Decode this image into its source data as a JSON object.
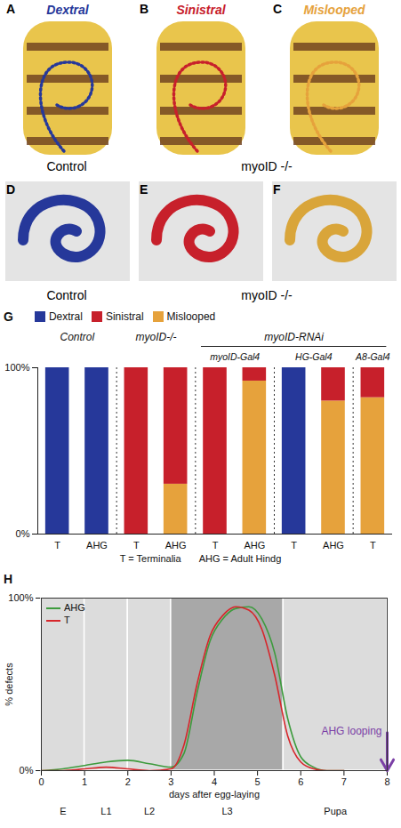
{
  "image_rows": [
    {
      "panels": [
        {
          "letter": "A",
          "label": "Dextral",
          "color": "#26389a"
        },
        {
          "letter": "B",
          "label": "Sinistral",
          "color": "#c7202b"
        },
        {
          "letter": "C",
          "label": "Mislooped",
          "color": "#e6a23c"
        }
      ],
      "captions": [
        {
          "text": "Control",
          "span": 1
        },
        {
          "text": "myoID -/-",
          "span": 2
        }
      ]
    },
    {
      "panels": [
        {
          "letter": "D",
          "color": "#26389a"
        },
        {
          "letter": "E",
          "color": "#c7202b"
        },
        {
          "letter": "F",
          "color": "#d9a53a"
        }
      ],
      "captions": [
        {
          "text": "Control",
          "span": 1
        },
        {
          "text": "myoID -/-",
          "span": 2
        }
      ]
    }
  ],
  "chart_data": [
    {
      "panel": "G",
      "type": "bar",
      "stacked": true,
      "legend": "top",
      "categories": [
        "T",
        "AHG",
        "T",
        "AHG",
        "T",
        "AHG",
        "T",
        "AHG",
        "T"
      ],
      "series": [
        {
          "name": "Dextral",
          "color": "#26389a",
          "values": [
            100,
            100,
            0,
            0,
            0,
            0,
            100,
            0,
            0
          ]
        },
        {
          "name": "Sinistral",
          "color": "#c7202b",
          "values": [
            0,
            0,
            100,
            70,
            100,
            8,
            0,
            20,
            18
          ]
        },
        {
          "name": "Mislooped",
          "color": "#e6a23c",
          "values": [
            0,
            0,
            0,
            30,
            0,
            92,
            0,
            80,
            82
          ]
        }
      ],
      "ylim": [
        0,
        100
      ],
      "yticks": [
        {
          "value": 0,
          "label": "0%"
        },
        {
          "value": 100,
          "label": "100%"
        }
      ],
      "groups": [
        {
          "label": "Control",
          "size": 2
        },
        {
          "label": "myoID-/-",
          "size": 2
        },
        {
          "label": "myoID-RNAi",
          "size": 5,
          "subgroups": [
            {
              "label": "myoID-Gal4",
              "size": 2
            },
            {
              "label": "HG-Gal4",
              "size": 2
            },
            {
              "label": "A8-Gal4",
              "size": 1
            }
          ]
        }
      ],
      "notes": [
        "T = Terminalia",
        "AHG = Adult Hindg"
      ]
    },
    {
      "panel": "H",
      "type": "line",
      "legend": "top-left",
      "xlabel": "days after egg-laying",
      "ylabel": "% defects",
      "xlim": [
        0,
        8
      ],
      "xticks": [
        0,
        1,
        2,
        3,
        4,
        5,
        6,
        7,
        8
      ],
      "ylim": [
        0,
        100
      ],
      "yticks": [
        {
          "value": 0,
          "label": "0%"
        },
        {
          "value": 100,
          "label": "100%"
        }
      ],
      "series": [
        {
          "name": "AHG",
          "color": "#3d9b3d",
          "x": [
            0,
            0.5,
            1,
            1.5,
            2,
            2.5,
            3,
            3.3,
            3.6,
            3.9,
            4.2,
            4.5,
            4.8,
            5.1,
            5.4,
            5.7,
            6,
            6.3,
            6.6,
            7
          ],
          "values": [
            0,
            1,
            3,
            5,
            6,
            4,
            2,
            10,
            45,
            75,
            88,
            94,
            95,
            88,
            68,
            30,
            8,
            2,
            0,
            0
          ]
        },
        {
          "name": "T",
          "color": "#d7262b",
          "x": [
            0,
            0.5,
            1,
            1.5,
            2,
            2.5,
            3,
            3.3,
            3.6,
            3.9,
            4.2,
            4.5,
            4.8,
            5.1,
            5.4,
            5.7,
            6,
            6.3,
            6.6,
            7
          ],
          "values": [
            0,
            0,
            1,
            2,
            1,
            0,
            1,
            15,
            50,
            78,
            90,
            95,
            93,
            82,
            55,
            20,
            5,
            1,
            0,
            0
          ]
        }
      ],
      "stages": [
        {
          "label": "E",
          "start": 0,
          "end": 1,
          "color": "#dcdcdc"
        },
        {
          "label": "L1",
          "start": 1,
          "end": 2,
          "color": "#dcdcdc"
        },
        {
          "label": "L2",
          "start": 2,
          "end": 3,
          "color": "#dcdcdc"
        },
        {
          "label": "L3",
          "start": 3,
          "end": 5.6,
          "color": "#a8a8a8"
        },
        {
          "label": "Pupa",
          "start": 5.6,
          "end": 8,
          "color": "#dcdcdc"
        }
      ],
      "annotations": [
        {
          "text": "AHG looping",
          "x": 8,
          "y": 22,
          "color": "#7b3fa6"
        }
      ]
    }
  ]
}
